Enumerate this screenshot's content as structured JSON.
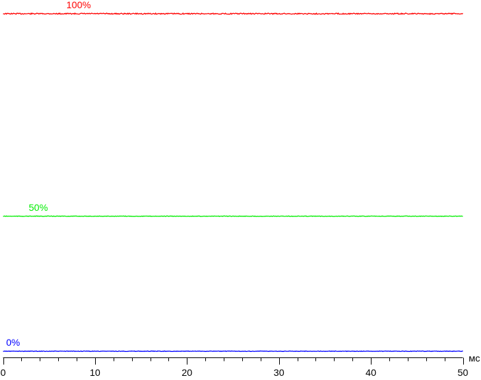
{
  "chart_data": {
    "type": "line",
    "xlabel": "мс",
    "xlim": [
      0,
      50
    ],
    "x_ticks_major": [
      0,
      10,
      20,
      30,
      40,
      50
    ],
    "x_ticks_minor_step": 2,
    "y_axis_shown": false,
    "grid": false,
    "series": [
      {
        "name": "100%",
        "color": "#ff0000",
        "level": 1.0
      },
      {
        "name": "50%",
        "color": "#00ee00",
        "level": 0.4
      },
      {
        "name": "0%",
        "color": "#0000ff",
        "level": 0.0
      }
    ]
  }
}
